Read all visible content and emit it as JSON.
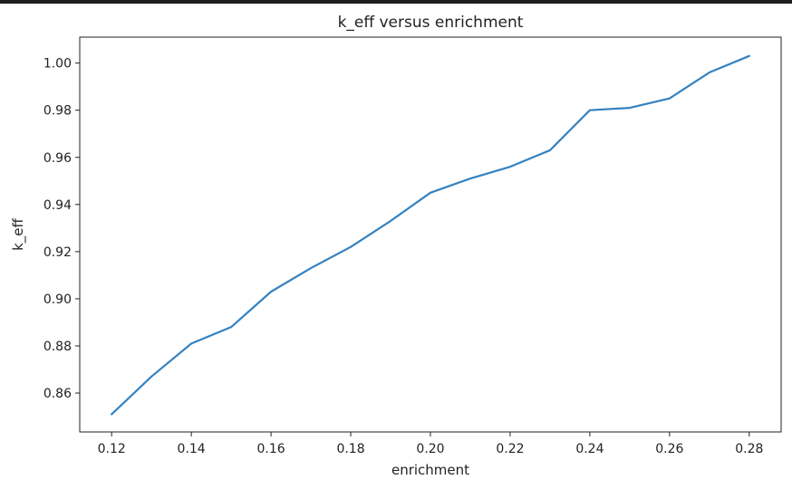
{
  "chart_data": {
    "type": "line",
    "title": "k_eff versus enrichment",
    "xlabel": "enrichment",
    "ylabel": "k_eff",
    "xlim": [
      0.112,
      0.288
    ],
    "ylim": [
      0.8435,
      1.011
    ],
    "grid": false,
    "legend": "none",
    "xticks": [
      0.12,
      0.14,
      0.16,
      0.18,
      0.2,
      0.22,
      0.24,
      0.26,
      0.28
    ],
    "xtick_labels": [
      "0.12",
      "0.14",
      "0.16",
      "0.18",
      "0.20",
      "0.22",
      "0.24",
      "0.26",
      "0.28"
    ],
    "yticks": [
      0.86,
      0.88,
      0.9,
      0.92,
      0.94,
      0.96,
      0.98,
      1.0
    ],
    "ytick_labels": [
      "0.86",
      "0.88",
      "0.90",
      "0.92",
      "0.94",
      "0.96",
      "0.98",
      "1.00"
    ],
    "series": [
      {
        "name": "k_eff",
        "color": "#3582c0",
        "x": [
          0.12,
          0.13,
          0.14,
          0.15,
          0.16,
          0.17,
          0.18,
          0.19,
          0.2,
          0.21,
          0.22,
          0.23,
          0.24,
          0.25,
          0.26,
          0.27,
          0.28
        ],
        "y": [
          0.851,
          0.867,
          0.881,
          0.888,
          0.903,
          0.913,
          0.922,
          0.933,
          0.945,
          0.951,
          0.956,
          0.963,
          0.98,
          0.981,
          0.985,
          0.996,
          1.003
        ]
      }
    ]
  }
}
